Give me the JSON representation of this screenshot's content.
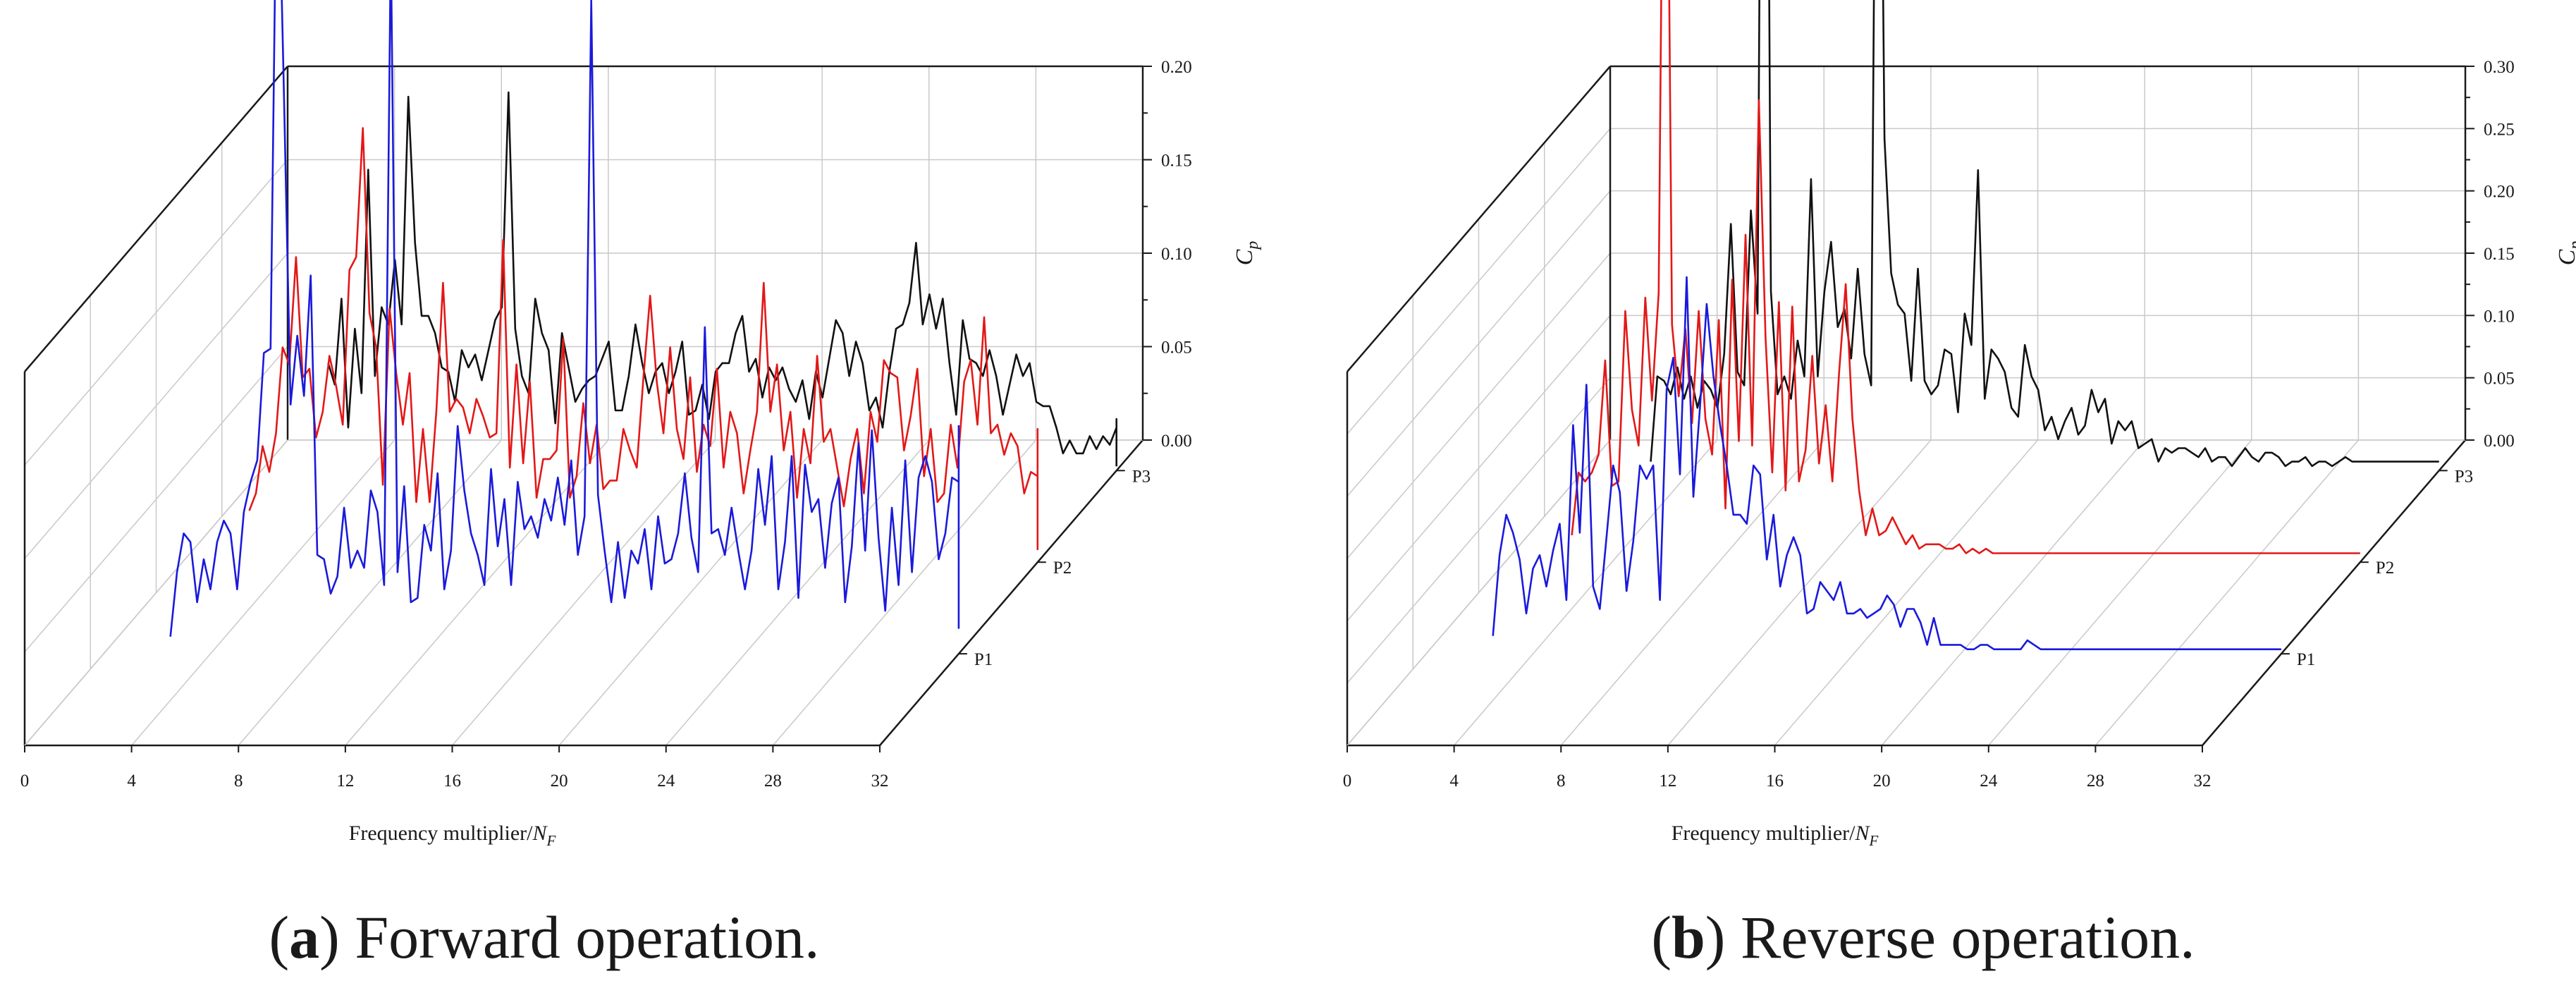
{
  "figure": {
    "captions": {
      "left": {
        "letter": "a",
        "text": "Forward operation."
      },
      "right": {
        "letter": "b",
        "text": "Reverse operation."
      }
    }
  },
  "chart_data": [
    {
      "id": "forward",
      "type": "line",
      "projection": "3d-waterfall",
      "title": "",
      "xlabel": "Frequency multiplier/",
      "xlabel_symbol": "N",
      "xlabel_subscript": "F",
      "zlabel_symbol": "C",
      "zlabel_subscript": "p",
      "xlim": [
        0,
        32
      ],
      "x_ticks": [
        "0",
        "4",
        "8",
        "12",
        "16",
        "20",
        "24",
        "28",
        "32"
      ],
      "zlim": [
        0,
        0.2
      ],
      "z_ticks": [
        "0.00",
        "0.05",
        "0.10",
        "0.15",
        "0.20"
      ],
      "x_start": 2.5,
      "x_step": 0.25,
      "series": [
        {
          "name": "P1",
          "color": "#1a1adb",
          "values": [
            0.004,
            0.019,
            0.028,
            0.026,
            0.012,
            0.022,
            0.015,
            0.026,
            0.031,
            0.028,
            0.015,
            0.033,
            0.04,
            0.045,
            0.07,
            0.071,
            0.199,
            0.13,
            0.058,
            0.074,
            0.06,
            0.088,
            0.023,
            0.022,
            0.014,
            0.018,
            0.034,
            0.02,
            0.024,
            0.02,
            0.038,
            0.033,
            0.016,
            0.166,
            0.019,
            0.039,
            0.012,
            0.013,
            0.03,
            0.024,
            0.042,
            0.015,
            0.024,
            0.053,
            0.038,
            0.028,
            0.023,
            0.016,
            0.043,
            0.025,
            0.036,
            0.016,
            0.04,
            0.029,
            0.032,
            0.027,
            0.036,
            0.031,
            0.041,
            0.03,
            0.045,
            0.023,
            0.032,
            0.152,
            0.037,
            0.024,
            0.012,
            0.026,
            0.013,
            0.024,
            0.021,
            0.029,
            0.015,
            0.032,
            0.021,
            0.022,
            0.028,
            0.042,
            0.027,
            0.019,
            0.076,
            0.028,
            0.029,
            0.023,
            0.034,
            0.024,
            0.015,
            0.024,
            0.043,
            0.03,
            0.046,
            0.015,
            0.026,
            0.046,
            0.013,
            0.044,
            0.033,
            0.036,
            0.02,
            0.035,
            0.041,
            0.012,
            0.025,
            0.049,
            0.024,
            0.052,
            0.027,
            0.01,
            0.034,
            0.016,
            0.045,
            0.019,
            0.041,
            0.046,
            0.04,
            0.022,
            0.028,
            0.041,
            0.04,
            0.01,
            0.053,
            0.014,
            0.049,
            0.04,
            0.025,
            0.034,
            0.022,
            0.011,
            0.022,
            0.016,
            0.05,
            0.021,
            0.042,
            0.033,
            0.042,
            0.039,
            0.039,
            0.039,
            0.039,
            0.028,
            0.029,
            0.023,
            0.026,
            0.028,
            0.033,
            0.018,
            0.012,
            0.014,
            0.01,
            0.016,
            0.022,
            0.011,
            0.017,
            0.013,
            0.009,
            0.012,
            0.018,
            0.016,
            0.012,
            0.007,
            0.017,
            0.009,
            0.006,
            0.014,
            0.009,
            0.011,
            0.012,
            0.008,
            0.018
          ]
        },
        {
          "name": "P2",
          "color": "#e31818",
          "values": [
            0.012,
            0.016,
            0.027,
            0.021,
            0.03,
            0.05,
            0.046,
            0.071,
            0.043,
            0.045,
            0.029,
            0.035,
            0.048,
            0.041,
            0.032,
            0.068,
            0.071,
            0.101,
            0.058,
            0.05,
            0.018,
            0.059,
            0.044,
            0.032,
            0.044,
            0.014,
            0.031,
            0.014,
            0.035,
            0.065,
            0.035,
            0.038,
            0.036,
            0.03,
            0.038,
            0.034,
            0.029,
            0.03,
            0.075,
            0.022,
            0.046,
            0.023,
            0.042,
            0.015,
            0.024,
            0.024,
            0.026,
            0.052,
            0.015,
            0.02,
            0.037,
            0.023,
            0.032,
            0.017,
            0.019,
            0.019,
            0.031,
            0.026,
            0.022,
            0.043,
            0.062,
            0.042,
            0.03,
            0.05,
            0.031,
            0.024,
            0.043,
            0.021,
            0.032,
            0.027,
            0.045,
            0.022,
            0.035,
            0.03,
            0.016,
            0.026,
            0.035,
            0.065,
            0.035,
            0.046,
            0.026,
            0.035,
            0.015,
            0.031,
            0.023,
            0.048,
            0.028,
            0.031,
            0.022,
            0.013,
            0.024,
            0.031,
            0.016,
            0.035,
            0.028,
            0.047,
            0.044,
            0.043,
            0.026,
            0.034,
            0.045,
            0.02,
            0.031,
            0.014,
            0.016,
            0.032,
            0.022,
            0.042,
            0.047,
            0.032,
            0.057,
            0.03,
            0.032,
            0.025,
            0.03,
            0.027,
            0.016,
            0.021,
            0.02,
            0.031,
            0.017,
            0.029,
            0.011,
            0.016,
            0.017,
            0.012,
            0.02,
            0.021,
            0.011,
            0.012,
            0.009,
            0.009,
            0.013,
            0.01,
            0.012,
            0.005,
            0.007,
            0.01,
            0.006,
            0.011,
            0.007,
            0.005,
            0.008,
            0.01,
            0.011,
            0.007,
            0.005,
            0.003,
            0.005
          ]
        },
        {
          "name": "P3",
          "color": "#111111",
          "values": [
            0.025,
            0.02,
            0.04,
            0.01,
            0.033,
            0.018,
            0.07,
            0.022,
            0.038,
            0.034,
            0.049,
            0.034,
            0.087,
            0.053,
            0.036,
            0.036,
            0.032,
            0.024,
            0.023,
            0.016,
            0.028,
            0.024,
            0.027,
            0.021,
            0.028,
            0.035,
            0.038,
            0.088,
            0.033,
            0.022,
            0.018,
            0.04,
            0.032,
            0.028,
            0.011,
            0.032,
            0.024,
            0.016,
            0.019,
            0.021,
            0.022,
            0.026,
            0.03,
            0.014,
            0.014,
            0.022,
            0.034,
            0.025,
            0.018,
            0.023,
            0.025,
            0.018,
            0.023,
            0.03,
            0.013,
            0.014,
            0.02,
            0.012,
            0.023,
            0.025,
            0.025,
            0.032,
            0.036,
            0.023,
            0.026,
            0.017,
            0.024,
            0.021,
            0.024,
            0.019,
            0.016,
            0.021,
            0.012,
            0.023,
            0.017,
            0.026,
            0.035,
            0.032,
            0.022,
            0.03,
            0.025,
            0.014,
            0.017,
            0.01,
            0.023,
            0.033,
            0.034,
            0.039,
            0.053,
            0.034,
            0.041,
            0.033,
            0.04,
            0.025,
            0.013,
            0.035,
            0.026,
            0.025,
            0.022,
            0.028,
            0.022,
            0.013,
            0.02,
            0.027,
            0.022,
            0.025,
            0.016,
            0.015,
            0.015,
            0.01,
            0.004,
            0.007,
            0.004,
            0.004,
            0.008,
            0.005,
            0.008,
            0.006,
            0.01,
            0.008,
            0.008,
            0.007,
            0.005,
            0.004,
            0.006,
            0.002,
            0.008,
            0.005,
            0.004,
            0.006,
            0.009,
            0.007,
            0.009,
            0.012,
            0.007,
            0.008,
            0.001
          ]
        }
      ]
    },
    {
      "id": "reverse",
      "type": "line",
      "projection": "3d-waterfall",
      "title": "",
      "xlabel": "Frequency multiplier/",
      "xlabel_symbol": "N",
      "xlabel_subscript": "F",
      "zlabel_symbol": "C",
      "zlabel_subscript": "p",
      "xlim": [
        0,
        32
      ],
      "x_ticks": [
        "0",
        "4",
        "8",
        "12",
        "16",
        "20",
        "24",
        "28",
        "32"
      ],
      "zlim": [
        0,
        0.3
      ],
      "z_ticks": [
        "0.00",
        "0.05",
        "0.10",
        "0.15",
        "0.20",
        "0.25",
        "0.30"
      ],
      "x_start": 2.5,
      "x_step": 0.25,
      "series": [
        {
          "name": "P1",
          "color": "#1a1adb",
          "values": [
            0.004,
            0.022,
            0.031,
            0.027,
            0.021,
            0.009,
            0.019,
            0.022,
            0.015,
            0.023,
            0.029,
            0.012,
            0.051,
            0.027,
            0.06,
            0.015,
            0.01,
            0.026,
            0.042,
            0.036,
            0.014,
            0.025,
            0.042,
            0.039,
            0.042,
            0.012,
            0.059,
            0.066,
            0.04,
            0.084,
            0.035,
            0.055,
            0.078,
            0.062,
            0.051,
            0.042,
            0.031,
            0.031,
            0.029,
            0.042,
            0.04,
            0.021,
            0.031,
            0.015,
            0.022,
            0.026,
            0.022,
            0.009,
            0.01,
            0.016,
            0.014,
            0.012,
            0.016,
            0.009,
            0.009,
            0.01,
            0.008,
            0.009,
            0.01,
            0.013,
            0.011,
            0.006,
            0.01,
            0.01,
            0.007,
            0.002,
            0.008,
            0.002,
            0.002,
            0.002,
            0.002,
            0.001,
            0.001,
            0.002,
            0.002,
            0.001,
            0.001,
            0.001,
            0.001,
            0.001,
            0.003,
            0.002,
            0.001,
            0.001,
            0.001,
            0.001,
            0.001,
            0.001,
            0.001,
            0.001,
            0.001,
            0.001,
            0.001,
            0.001,
            0.001,
            0.001,
            0.001,
            0.001,
            0.001,
            0.001,
            0.001,
            0.001,
            0.001,
            0.001,
            0.001,
            0.001,
            0.001,
            0.001,
            0.001,
            0.001,
            0.001,
            0.001,
            0.001,
            0.001,
            0.001,
            0.001,
            0.001,
            0.001,
            0.001,
            0.001,
            0.001,
            0.001,
            0.001,
            0.001,
            0.001,
            0.001,
            0.001,
            0.001,
            0.001,
            0.001,
            0.001,
            0.001,
            0.001,
            0.001,
            0.001,
            0.001,
            0.001,
            0.001,
            0.001,
            0.001,
            0.001,
            0.001,
            0.001,
            0.001,
            0.001,
            0.001,
            0.001,
            0.001,
            0.001,
            0.001
          ]
        },
        {
          "name": "P2",
          "color": "#e31818",
          "values": [
            0.006,
            0.02,
            0.018,
            0.02,
            0.024,
            0.045,
            0.017,
            0.018,
            0.056,
            0.034,
            0.026,
            0.059,
            0.036,
            0.06,
            0.231,
            0.053,
            0.037,
            0.052,
            0.031,
            0.056,
            0.032,
            0.024,
            0.054,
            0.012,
            0.063,
            0.027,
            0.073,
            0.026,
            0.103,
            0.05,
            0.02,
            0.058,
            0.016,
            0.057,
            0.018,
            0.025,
            0.046,
            0.022,
            0.035,
            0.018,
            0.042,
            0.062,
            0.032,
            0.016,
            0.006,
            0.012,
            0.006,
            0.007,
            0.01,
            0.007,
            0.004,
            0.006,
            0.003,
            0.004,
            0.004,
            0.004,
            0.003,
            0.003,
            0.004,
            0.002,
            0.003,
            0.002,
            0.003,
            0.002,
            0.002,
            0.002,
            0.002,
            0.002,
            0.002,
            0.002,
            0.002,
            0.002,
            0.002,
            0.002,
            0.002,
            0.002,
            0.002,
            0.002,
            0.002,
            0.002,
            0.002,
            0.002,
            0.002,
            0.002,
            0.002,
            0.002,
            0.002,
            0.002,
            0.002,
            0.002,
            0.002,
            0.002,
            0.002,
            0.002,
            0.002,
            0.002,
            0.002,
            0.002,
            0.002,
            0.002,
            0.002,
            0.002,
            0.002,
            0.002,
            0.002,
            0.002,
            0.002,
            0.002,
            0.002,
            0.002,
            0.002,
            0.002,
            0.002,
            0.002,
            0.002,
            0.002,
            0.002,
            0.002,
            0.002,
            0.002,
            0.002,
            0.002,
            0.002,
            0.002,
            0.002,
            0.002,
            0.002,
            0.002,
            0.002,
            0.002,
            0.002,
            0.002,
            0.002,
            0.002,
            0.002,
            0.002,
            0.002,
            0.002,
            0.002,
            0.002,
            0.002,
            0.002,
            0.002,
            0.002,
            0.002,
            0.002,
            0.002,
            0.002,
            0.002,
            0.002,
            0.002,
            0.002,
            0.002
          ]
        },
        {
          "name": "P3",
          "color": "#111111",
          "values": [
            0.002,
            0.021,
            0.02,
            0.017,
            0.023,
            0.016,
            0.021,
            0.014,
            0.02,
            0.018,
            0.014,
            0.026,
            0.055,
            0.022,
            0.019,
            0.058,
            0.035,
            0.298,
            0.04,
            0.017,
            0.021,
            0.016,
            0.029,
            0.021,
            0.065,
            0.021,
            0.04,
            0.051,
            0.032,
            0.036,
            0.025,
            0.045,
            0.026,
            0.019,
            0.23,
            0.074,
            0.044,
            0.037,
            0.035,
            0.02,
            0.045,
            0.02,
            0.017,
            0.019,
            0.027,
            0.026,
            0.013,
            0.035,
            0.028,
            0.067,
            0.016,
            0.027,
            0.025,
            0.022,
            0.014,
            0.012,
            0.028,
            0.021,
            0.018,
            0.009,
            0.012,
            0.007,
            0.011,
            0.014,
            0.008,
            0.01,
            0.018,
            0.013,
            0.016,
            0.006,
            0.011,
            0.009,
            0.011,
            0.005,
            0.006,
            0.007,
            0.002,
            0.005,
            0.004,
            0.005,
            0.005,
            0.004,
            0.003,
            0.005,
            0.002,
            0.003,
            0.003,
            0.001,
            0.003,
            0.005,
            0.003,
            0.002,
            0.004,
            0.004,
            0.003,
            0.001,
            0.002,
            0.002,
            0.003,
            0.001,
            0.002,
            0.002,
            0.001,
            0.002,
            0.003,
            0.002,
            0.002,
            0.002,
            0.002,
            0.002,
            0.002,
            0.002,
            0.002,
            0.002,
            0.002,
            0.002,
            0.002,
            0.002,
            0.002,
            0.002,
            0.002,
            0.002,
            0.002,
            0.002,
            0.002,
            0.002,
            0.002,
            0.002,
            0.002,
            0.002,
            0.002,
            0.002,
            0.002,
            0.002,
            0.002,
            0.002,
            0.002,
            0.002,
            0.002,
            0.002,
            0.002,
            0.002,
            0.002,
            0.002,
            0.002,
            0.002,
            0.002,
            0.002,
            0.002,
            0.002,
            0.002,
            0.002,
            0.002,
            0.002,
            0.002
          ]
        }
      ]
    }
  ]
}
